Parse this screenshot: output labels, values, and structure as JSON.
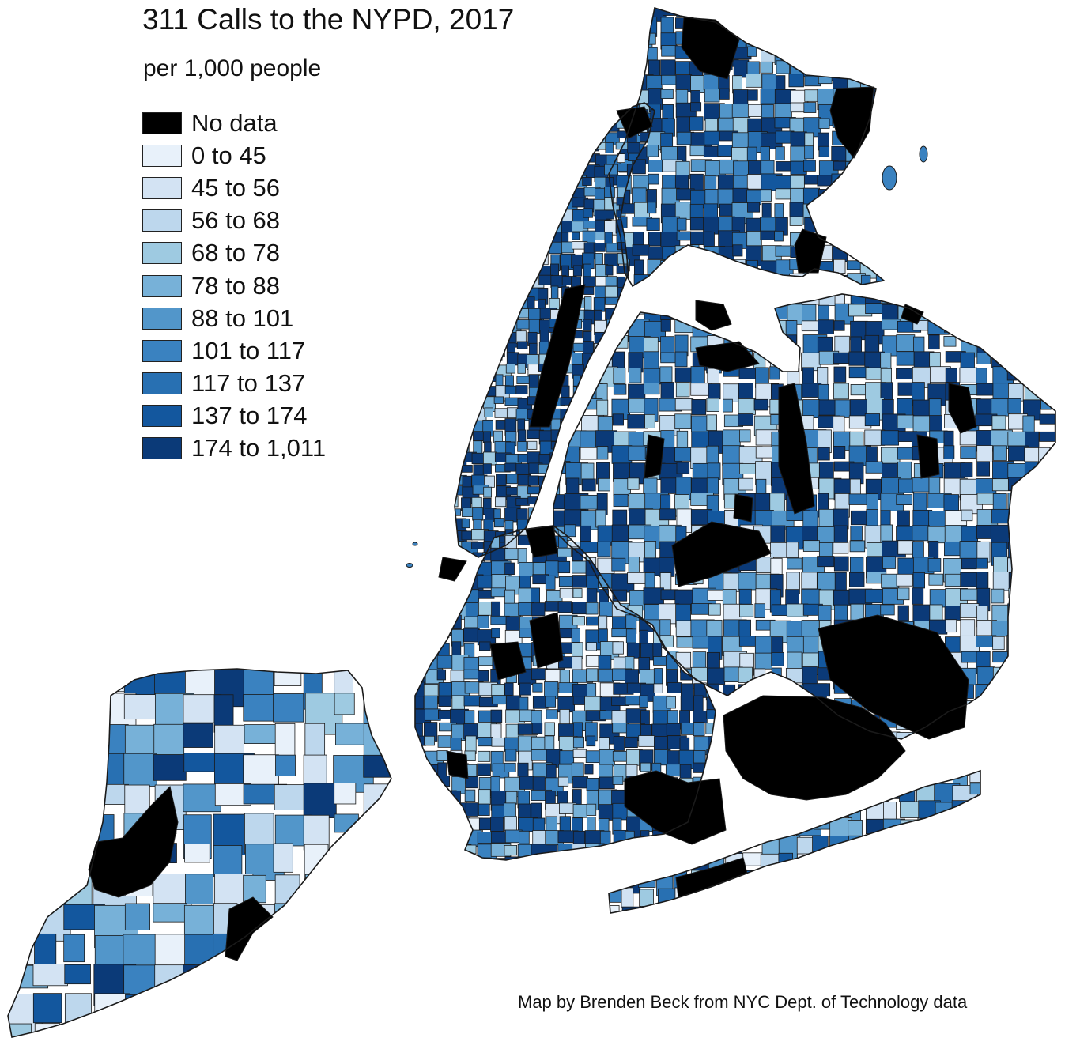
{
  "map": {
    "title": "311 Calls to the NYPD, 2017",
    "subtitle": "per 1,000 people",
    "credit": "Map by Brenden Beck from NYC Dept. of Technology data",
    "legend": [
      {
        "label": "No data",
        "color": "#000000"
      },
      {
        "label": "0 to 45",
        "color": "#e8f1fa"
      },
      {
        "label": "45 to 56",
        "color": "#d3e3f3"
      },
      {
        "label": "56 to 68",
        "color": "#bdd7ed"
      },
      {
        "label": "68 to 78",
        "color": "#9ecae1"
      },
      {
        "label": "78 to 88",
        "color": "#77b1d8"
      },
      {
        "label": "88 to 101",
        "color": "#5296ca"
      },
      {
        "label": "101 to 117",
        "color": "#3a82c0"
      },
      {
        "label": "117 to 137",
        "color": "#2870b2"
      },
      {
        "label": "137 to 174",
        "color": "#13579e"
      },
      {
        "label": "174 to 1,011",
        "color": "#0b3a78"
      }
    ],
    "border_color": "#1a1a1a",
    "background": "#ffffff"
  }
}
